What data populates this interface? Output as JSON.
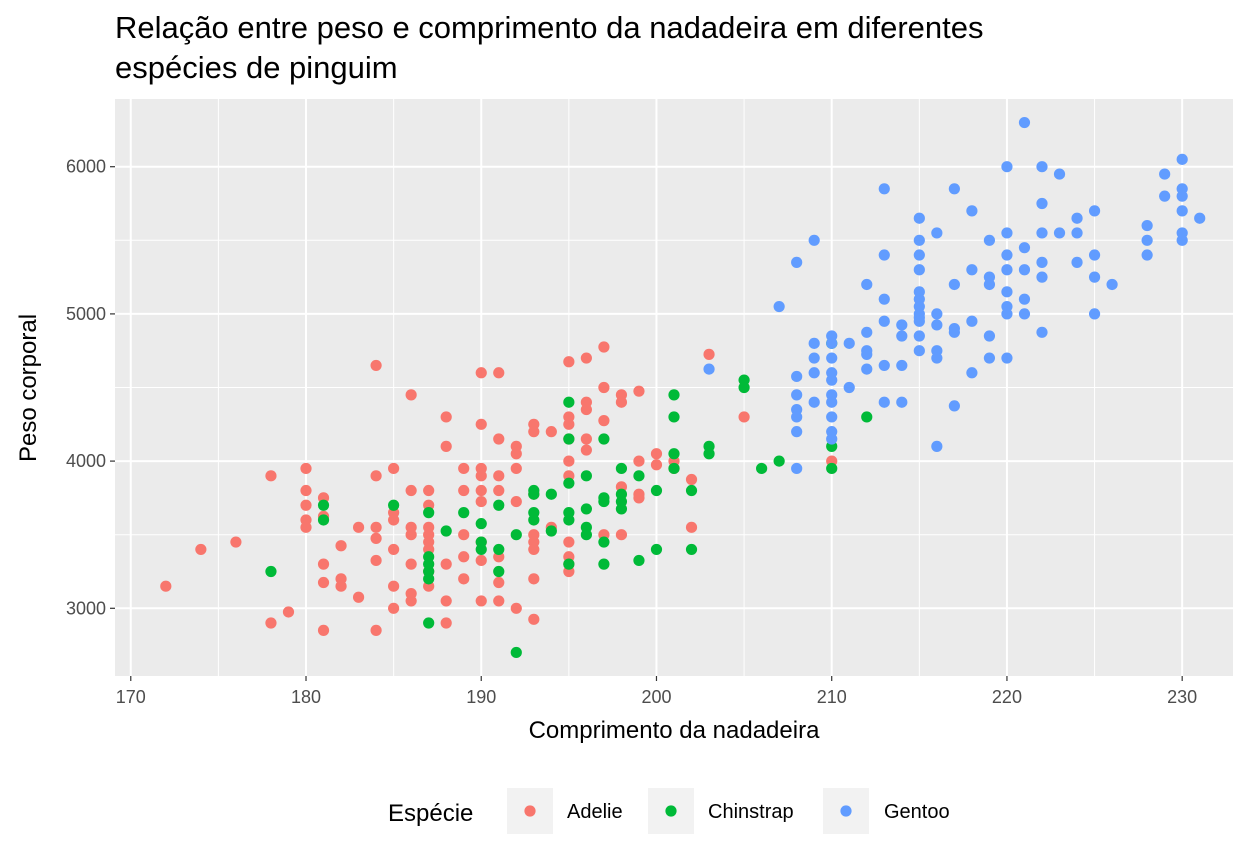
{
  "chart_data": {
    "type": "scatter",
    "title_line1": "Relação entre peso e comprimento da nadadeira em diferentes",
    "title_line2": "espécies de pinguim",
    "xlabel": "Comprimento da nadadeira",
    "ylabel": "Peso corporal",
    "xlim": [
      169.1,
      232.9
    ],
    "ylim": [
      2540,
      6460
    ],
    "x_ticks": [
      170,
      180,
      190,
      200,
      210,
      220,
      230
    ],
    "y_ticks": [
      3000,
      4000,
      5000,
      6000
    ],
    "grid": true,
    "legend": {
      "title": "Espécie",
      "position": "bottom"
    },
    "series": [
      {
        "name": "Adelie",
        "color": "#F8766D",
        "points": [
          [
            172,
            3150
          ],
          [
            174,
            3400
          ],
          [
            176,
            3450
          ],
          [
            178,
            3900
          ],
          [
            178,
            2900
          ],
          [
            179,
            2975
          ],
          [
            180,
            3950
          ],
          [
            180,
            3800
          ],
          [
            180,
            3700
          ],
          [
            180,
            3600
          ],
          [
            180,
            3550
          ],
          [
            181,
            3750
          ],
          [
            181,
            3625
          ],
          [
            181,
            3300
          ],
          [
            181,
            3175
          ],
          [
            181,
            2850
          ],
          [
            182,
            3425
          ],
          [
            182,
            3200
          ],
          [
            182,
            3150
          ],
          [
            183,
            3550
          ],
          [
            183,
            3075
          ],
          [
            184,
            4650
          ],
          [
            184,
            3900
          ],
          [
            184,
            3550
          ],
          [
            184,
            3475
          ],
          [
            184,
            3325
          ],
          [
            184,
            2850
          ],
          [
            185,
            3950
          ],
          [
            185,
            3650
          ],
          [
            185,
            3600
          ],
          [
            185,
            3400
          ],
          [
            185,
            3150
          ],
          [
            185,
            3000
          ],
          [
            186,
            4450
          ],
          [
            186,
            3800
          ],
          [
            186,
            3550
          ],
          [
            186,
            3500
          ],
          [
            186,
            3300
          ],
          [
            186,
            3100
          ],
          [
            186,
            3050
          ],
          [
            187,
            3800
          ],
          [
            187,
            3700
          ],
          [
            187,
            3550
          ],
          [
            187,
            3500
          ],
          [
            187,
            3450
          ],
          [
            187,
            3400
          ],
          [
            187,
            3250
          ],
          [
            187,
            3150
          ],
          [
            188,
            4300
          ],
          [
            188,
            4100
          ],
          [
            188,
            3300
          ],
          [
            188,
            3050
          ],
          [
            188,
            2900
          ],
          [
            189,
            3950
          ],
          [
            189,
            3800
          ],
          [
            189,
            3500
          ],
          [
            189,
            3350
          ],
          [
            189,
            3200
          ],
          [
            190,
            4600
          ],
          [
            190,
            4250
          ],
          [
            190,
            3950
          ],
          [
            190,
            3900
          ],
          [
            190,
            3800
          ],
          [
            190,
            3725
          ],
          [
            190,
            3450
          ],
          [
            190,
            3325
          ],
          [
            190,
            3050
          ],
          [
            191,
            4600
          ],
          [
            191,
            4150
          ],
          [
            191,
            3900
          ],
          [
            191,
            3800
          ],
          [
            191,
            3350
          ],
          [
            191,
            3175
          ],
          [
            191,
            3050
          ],
          [
            192,
            4100
          ],
          [
            192,
            4050
          ],
          [
            192,
            3950
          ],
          [
            192,
            3725
          ],
          [
            192,
            3000
          ],
          [
            193,
            4250
          ],
          [
            193,
            4200
          ],
          [
            193,
            3775
          ],
          [
            193,
            3500
          ],
          [
            193,
            3450
          ],
          [
            193,
            3400
          ],
          [
            193,
            3200
          ],
          [
            193,
            2925
          ],
          [
            194,
            4200
          ],
          [
            194,
            3550
          ],
          [
            195,
            4675
          ],
          [
            195,
            4300
          ],
          [
            195,
            4250
          ],
          [
            195,
            4150
          ],
          [
            195,
            4000
          ],
          [
            195,
            3900
          ],
          [
            195,
            3450
          ],
          [
            195,
            3350
          ],
          [
            195,
            3300
          ],
          [
            195,
            3250
          ],
          [
            196,
            4700
          ],
          [
            196,
            4400
          ],
          [
            196,
            4350
          ],
          [
            196,
            4150
          ],
          [
            196,
            4075
          ],
          [
            197,
            4775
          ],
          [
            197,
            4500
          ],
          [
            197,
            4275
          ],
          [
            197,
            3500
          ],
          [
            198,
            4450
          ],
          [
            198,
            4400
          ],
          [
            198,
            3825
          ],
          [
            198,
            3500
          ],
          [
            199,
            4475
          ],
          [
            199,
            4000
          ],
          [
            199,
            3775
          ],
          [
            199,
            3750
          ],
          [
            200,
            4050
          ],
          [
            200,
            3975
          ],
          [
            201,
            4000
          ],
          [
            201,
            3950
          ],
          [
            202,
            3875
          ],
          [
            202,
            3550
          ],
          [
            203,
            4725
          ],
          [
            205,
            4300
          ],
          [
            210,
            4000
          ]
        ]
      },
      {
        "name": "Chinstrap",
        "color": "#00BA38",
        "points": [
          [
            178,
            3250
          ],
          [
            181,
            3700
          ],
          [
            181,
            3600
          ],
          [
            185,
            3700
          ],
          [
            187,
            3650
          ],
          [
            187,
            3350
          ],
          [
            187,
            3300
          ],
          [
            187,
            3250
          ],
          [
            187,
            3200
          ],
          [
            187,
            2900
          ],
          [
            188,
            3525
          ],
          [
            189,
            3650
          ],
          [
            190,
            3575
          ],
          [
            190,
            3450
          ],
          [
            190,
            3400
          ],
          [
            191,
            3700
          ],
          [
            191,
            3400
          ],
          [
            191,
            3250
          ],
          [
            192,
            3500
          ],
          [
            192,
            2700
          ],
          [
            193,
            3800
          ],
          [
            193,
            3775
          ],
          [
            193,
            3650
          ],
          [
            193,
            3600
          ],
          [
            194,
            3775
          ],
          [
            194,
            3525
          ],
          [
            195,
            4400
          ],
          [
            195,
            4150
          ],
          [
            195,
            3850
          ],
          [
            195,
            3650
          ],
          [
            195,
            3600
          ],
          [
            195,
            3300
          ],
          [
            196,
            3900
          ],
          [
            196,
            3675
          ],
          [
            196,
            3550
          ],
          [
            196,
            3500
          ],
          [
            197,
            4150
          ],
          [
            197,
            3750
          ],
          [
            197,
            3725
          ],
          [
            197,
            3450
          ],
          [
            197,
            3300
          ],
          [
            198,
            3950
          ],
          [
            198,
            3775
          ],
          [
            198,
            3725
          ],
          [
            198,
            3675
          ],
          [
            199,
            3900
          ],
          [
            199,
            3325
          ],
          [
            200,
            3800
          ],
          [
            200,
            3400
          ],
          [
            201,
            4450
          ],
          [
            201,
            4300
          ],
          [
            201,
            4050
          ],
          [
            201,
            3950
          ],
          [
            202,
            3800
          ],
          [
            202,
            3400
          ],
          [
            203,
            4100
          ],
          [
            203,
            4050
          ],
          [
            205,
            4550
          ],
          [
            205,
            4500
          ],
          [
            206,
            3950
          ],
          [
            207,
            4000
          ],
          [
            210,
            4800
          ],
          [
            210,
            4100
          ],
          [
            210,
            3950
          ],
          [
            212,
            4300
          ]
        ]
      },
      {
        "name": "Gentoo",
        "color": "#619CFF",
        "points": [
          [
            203,
            4625
          ],
          [
            207,
            5050
          ],
          [
            208,
            5350
          ],
          [
            208,
            4575
          ],
          [
            208,
            4450
          ],
          [
            208,
            4350
          ],
          [
            208,
            4300
          ],
          [
            208,
            4200
          ],
          [
            208,
            3950
          ],
          [
            209,
            5500
          ],
          [
            209,
            4800
          ],
          [
            209,
            4700
          ],
          [
            209,
            4600
          ],
          [
            209,
            4400
          ],
          [
            210,
            4850
          ],
          [
            210,
            4800
          ],
          [
            210,
            4700
          ],
          [
            210,
            4600
          ],
          [
            210,
            4550
          ],
          [
            210,
            4450
          ],
          [
            210,
            4400
          ],
          [
            210,
            4300
          ],
          [
            210,
            4200
          ],
          [
            210,
            4150
          ],
          [
            211,
            4800
          ],
          [
            211,
            4500
          ],
          [
            212,
            5200
          ],
          [
            212,
            4875
          ],
          [
            212,
            4750
          ],
          [
            212,
            4725
          ],
          [
            212,
            4625
          ],
          [
            213,
            5850
          ],
          [
            213,
            5400
          ],
          [
            213,
            5100
          ],
          [
            213,
            4950
          ],
          [
            213,
            4650
          ],
          [
            213,
            4400
          ],
          [
            214,
            4925
          ],
          [
            214,
            4850
          ],
          [
            214,
            4650
          ],
          [
            214,
            4400
          ],
          [
            215,
            5650
          ],
          [
            215,
            5500
          ],
          [
            215,
            5400
          ],
          [
            215,
            5300
          ],
          [
            215,
            5150
          ],
          [
            215,
            5100
          ],
          [
            215,
            5050
          ],
          [
            215,
            5000
          ],
          [
            215,
            4975
          ],
          [
            215,
            4950
          ],
          [
            215,
            4850
          ],
          [
            215,
            4750
          ],
          [
            216,
            5550
          ],
          [
            216,
            5000
          ],
          [
            216,
            4925
          ],
          [
            216,
            4750
          ],
          [
            216,
            4700
          ],
          [
            216,
            4100
          ],
          [
            217,
            5850
          ],
          [
            217,
            5200
          ],
          [
            217,
            4900
          ],
          [
            217,
            4875
          ],
          [
            217,
            4375
          ],
          [
            218,
            5700
          ],
          [
            218,
            5300
          ],
          [
            218,
            4950
          ],
          [
            218,
            4600
          ],
          [
            219,
            5500
          ],
          [
            219,
            5250
          ],
          [
            219,
            5200
          ],
          [
            219,
            4850
          ],
          [
            219,
            4700
          ],
          [
            220,
            6000
          ],
          [
            220,
            5550
          ],
          [
            220,
            5400
          ],
          [
            220,
            5300
          ],
          [
            220,
            5150
          ],
          [
            220,
            5050
          ],
          [
            220,
            5000
          ],
          [
            220,
            4700
          ],
          [
            221,
            6300
          ],
          [
            221,
            5450
          ],
          [
            221,
            5300
          ],
          [
            221,
            5100
          ],
          [
            221,
            5000
          ],
          [
            222,
            6000
          ],
          [
            222,
            5750
          ],
          [
            222,
            5550
          ],
          [
            222,
            5350
          ],
          [
            222,
            5250
          ],
          [
            222,
            4875
          ],
          [
            223,
            5950
          ],
          [
            223,
            5550
          ],
          [
            224,
            5650
          ],
          [
            224,
            5550
          ],
          [
            224,
            5350
          ],
          [
            225,
            5700
          ],
          [
            225,
            5400
          ],
          [
            225,
            5250
          ],
          [
            225,
            5000
          ],
          [
            226,
            5200
          ],
          [
            228,
            5600
          ],
          [
            228,
            5500
          ],
          [
            228,
            5400
          ],
          [
            229,
            5950
          ],
          [
            229,
            5800
          ],
          [
            230,
            6050
          ],
          [
            230,
            5850
          ],
          [
            230,
            5800
          ],
          [
            230,
            5700
          ],
          [
            230,
            5550
          ],
          [
            230,
            5500
          ],
          [
            231,
            5650
          ]
        ]
      }
    ]
  }
}
